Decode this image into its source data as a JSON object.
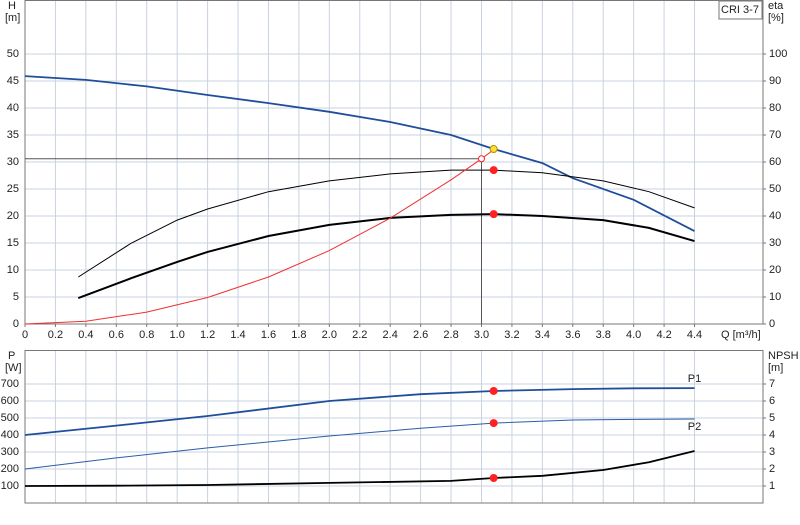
{
  "chart_data": [
    {
      "type": "line",
      "label_box": "CRI 3-7",
      "y_label": "H",
      "y_unit": "[m]",
      "y2_label": "eta",
      "y2_unit": "[%]",
      "x_label": "Q [m³/h]",
      "xlim": [
        0,
        4.85
      ],
      "ylim": [
        0,
        60
      ],
      "y2lim": [
        0,
        120
      ],
      "xticks": [
        0,
        0.2,
        0.4,
        0.6,
        0.8,
        {
          "value": 1,
          "label": "1.0"
        },
        1.2,
        1.4,
        1.6,
        1.8,
        {
          "value": 2,
          "label": "2.0"
        },
        2.2,
        2.4,
        2.6,
        2.8,
        {
          "value": 3,
          "label": "3.0"
        },
        3.2,
        3.4,
        3.6,
        3.8,
        {
          "value": 4,
          "label": "4.0"
        },
        4.2,
        4.4
      ],
      "yticks": [
        0,
        5,
        10,
        15,
        20,
        25,
        30,
        35,
        40,
        45,
        50
      ],
      "y2ticks": [
        0,
        10,
        20,
        30,
        40,
        50,
        60,
        70,
        80,
        90,
        100
      ],
      "grid": true,
      "series": [
        {
          "color": "#1f4e9c",
          "width": 1.8,
          "x": [
            0,
            0.4,
            0.8,
            1.2,
            1.6,
            2.0,
            2.4,
            2.8,
            3.08,
            3.4,
            3.6,
            4.0,
            4.4
          ],
          "values": [
            45.9,
            45.2,
            44,
            42.4,
            40.9,
            39.3,
            37.4,
            35,
            32.4,
            29.8,
            27,
            23,
            17.2
          ]
        },
        {
          "color": "#000000",
          "width": 1,
          "axis": "y2",
          "x": [
            0.35,
            0.7,
            1.0,
            1.2,
            1.6,
            2.0,
            2.4,
            2.8,
            3.08,
            3.4,
            3.8,
            4.1,
            4.4
          ],
          "values": [
            17.4,
            30,
            38.5,
            42.6,
            49,
            53,
            55.6,
            57,
            57,
            56,
            53,
            49,
            43
          ]
        },
        {
          "color": "#000000",
          "width": 2,
          "axis": "y2",
          "x": [
            0.35,
            0.7,
            1.0,
            1.2,
            1.6,
            2.0,
            2.4,
            2.8,
            3.08,
            3.4,
            3.8,
            4.1,
            4.4
          ],
          "values": [
            9.6,
            17,
            23,
            26.7,
            32.6,
            36.7,
            39.3,
            40.4,
            40.7,
            40,
            38.5,
            35.6,
            30.7
          ]
        },
        {
          "color": "#f03030",
          "width": 1,
          "x": [
            0,
            0.4,
            0.8,
            1.2,
            1.6,
            2.0,
            2.4,
            2.8,
            3.0,
            3.08
          ],
          "values": [
            0,
            0.5,
            2.2,
            4.9,
            8.7,
            13.6,
            19.6,
            26.7,
            30.6,
            32.3
          ]
        }
      ],
      "duty_lines": {
        "x": 3.0,
        "y": 30.6,
        "color": "#555555"
      },
      "points": [
        {
          "x": 3.08,
          "y": 32.4,
          "color": "#ffe030"
        },
        {
          "x": 3.08,
          "y": 57,
          "color": "#ff2020",
          "axis": "y2"
        },
        {
          "x": 3.08,
          "y": 40.7,
          "color": "#ff2020",
          "axis": "y2"
        },
        {
          "x": 3.0,
          "y": 30.6,
          "color": "#ff2020",
          "open": true
        }
      ]
    },
    {
      "type": "line",
      "y_label": "P",
      "y_unit": "[W]",
      "y2_label": "NPSH",
      "y2_unit": "[m]",
      "xlim": [
        0,
        4.85
      ],
      "ylim": [
        0,
        900
      ],
      "y2lim": [
        0,
        9
      ],
      "yticks": [
        100,
        200,
        300,
        400,
        500,
        600,
        700
      ],
      "y2ticks": [
        1,
        2,
        3,
        4,
        5,
        6,
        7
      ],
      "grid": true,
      "series": [
        {
          "name": "P1",
          "color": "#1f4e9c",
          "width": 1.8,
          "x": [
            0,
            0.6,
            1.2,
            2.0,
            2.6,
            3.08,
            3.6,
            4.0,
            4.4
          ],
          "values": [
            400,
            455,
            512,
            600,
            640,
            659,
            670,
            675,
            676
          ]
        },
        {
          "name": "P2",
          "color": "#2a5da8",
          "width": 1,
          "x": [
            0,
            0.6,
            1.2,
            2.0,
            2.6,
            3.08,
            3.6,
            4.0,
            4.4
          ],
          "values": [
            200,
            265,
            324,
            394,
            440,
            470,
            488,
            492,
            494
          ]
        },
        {
          "color": "#000000",
          "width": 1.8,
          "axis": "y2",
          "x": [
            0,
            0.6,
            1.2,
            2.0,
            2.8,
            3.08,
            3.4,
            3.8,
            4.1,
            4.4
          ],
          "values": [
            1.0,
            1.02,
            1.06,
            1.18,
            1.3,
            1.47,
            1.6,
            1.94,
            2.4,
            3.06
          ]
        }
      ],
      "points": [
        {
          "x": 3.08,
          "y": 659,
          "color": "#ff2020"
        },
        {
          "x": 3.08,
          "y": 470,
          "color": "#ff2020"
        },
        {
          "x": 3.08,
          "y": 1.47,
          "color": "#ff2020",
          "axis": "y2"
        }
      ]
    }
  ]
}
